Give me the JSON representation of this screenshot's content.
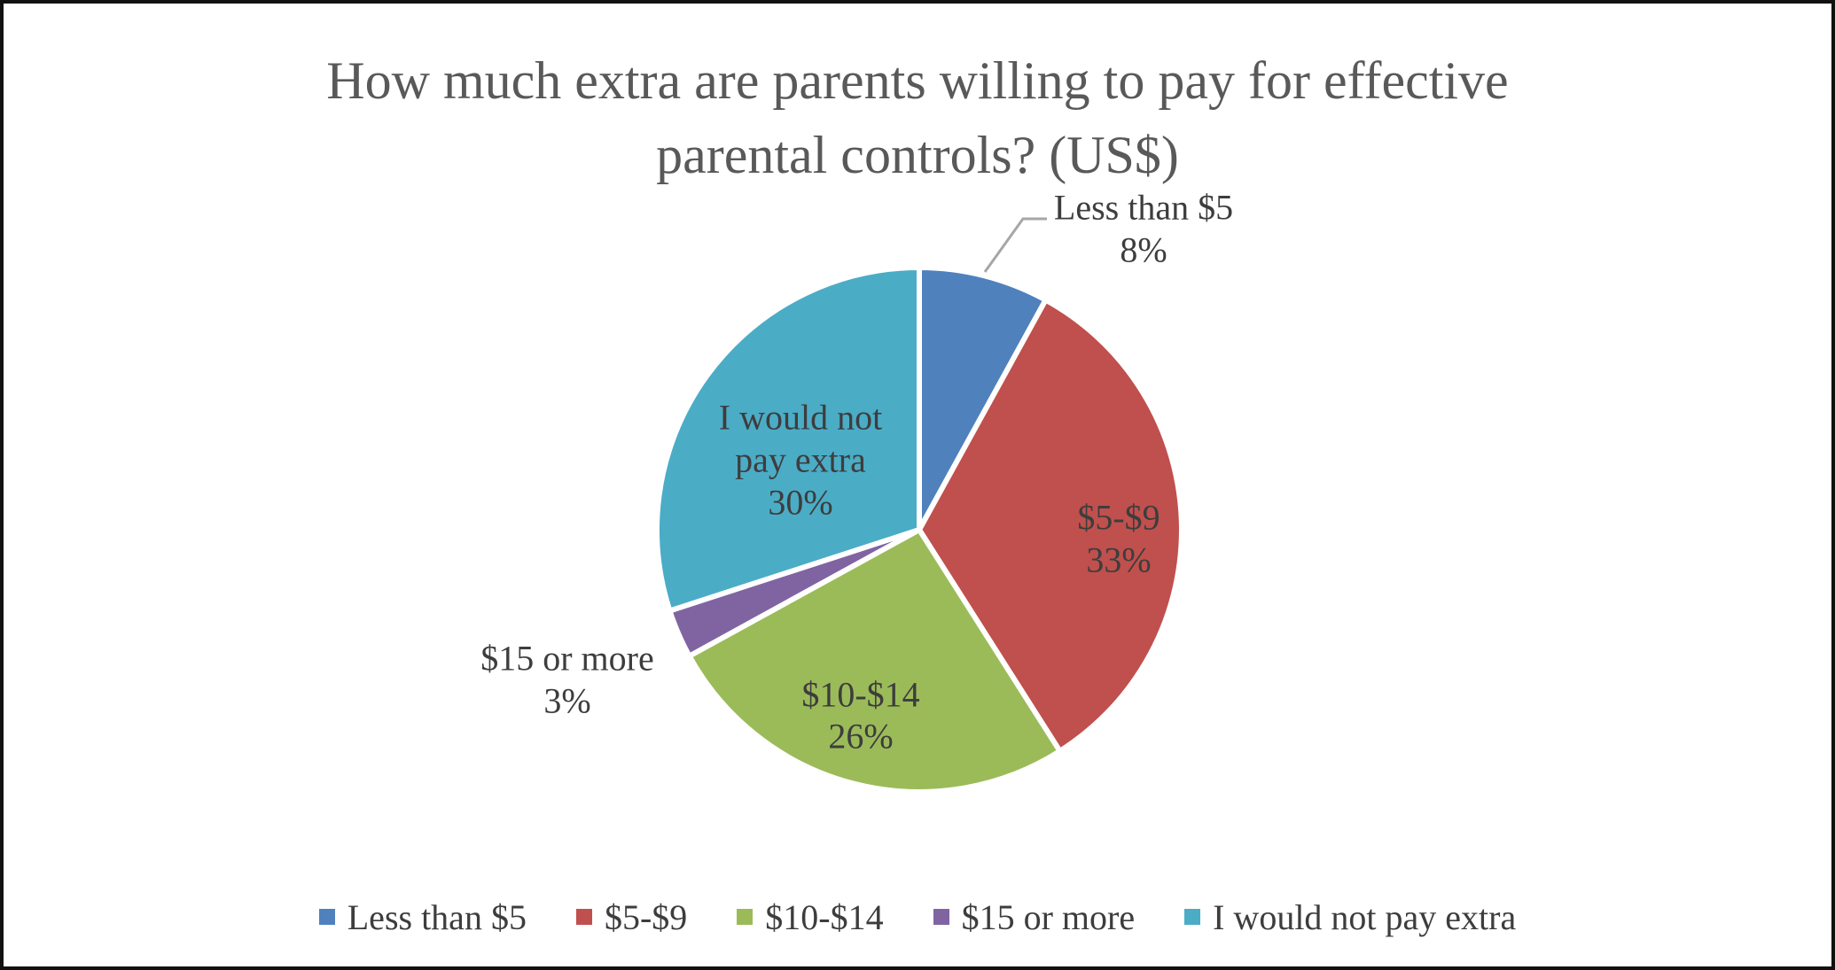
{
  "title": {
    "line1": "How much extra are parents willing to pay for effective",
    "line2": "parental controls? (US$)"
  },
  "chart_data": {
    "type": "pie",
    "title": "How much extra are parents willing to pay for effective parental controls? (US$)",
    "categories": [
      "Less than $5",
      "$5-$9",
      "$10-$14",
      "$15 or more",
      "I would not pay extra"
    ],
    "values": [
      8,
      33,
      26,
      3,
      30
    ],
    "unit": "percent",
    "colors": [
      "#4F81BD",
      "#C0504D",
      "#9BBB59",
      "#8064A2",
      "#4BACC6"
    ],
    "start_angle_deg": 0,
    "direction": "clockwise",
    "legend_position": "bottom",
    "data_labels": [
      {
        "lines": [
          "Less than $5",
          "8%"
        ],
        "placement": "outside",
        "leader_line": true
      },
      {
        "lines": [
          "$5-$9",
          "33%"
        ],
        "placement": "inside",
        "leader_line": false
      },
      {
        "lines": [
          "$10-$14",
          "26%"
        ],
        "placement": "inside",
        "leader_line": false
      },
      {
        "lines": [
          "$15 or more",
          "3%"
        ],
        "placement": "outside",
        "leader_line": false
      },
      {
        "lines": [
          "I would not",
          "pay extra",
          "30%"
        ],
        "placement": "inside",
        "leader_line": false
      }
    ],
    "legend_items": [
      "Less than $5",
      "$5-$9",
      "$10-$14",
      "$15 or more",
      "I would not pay extra"
    ]
  },
  "colors": {
    "label_text": "#3D3D3D",
    "title_text": "#595959",
    "leader_line": "#A6A6A6",
    "slice_border": "#FFFFFF",
    "frame_border": "#111111",
    "background": "#FFFFFF"
  }
}
